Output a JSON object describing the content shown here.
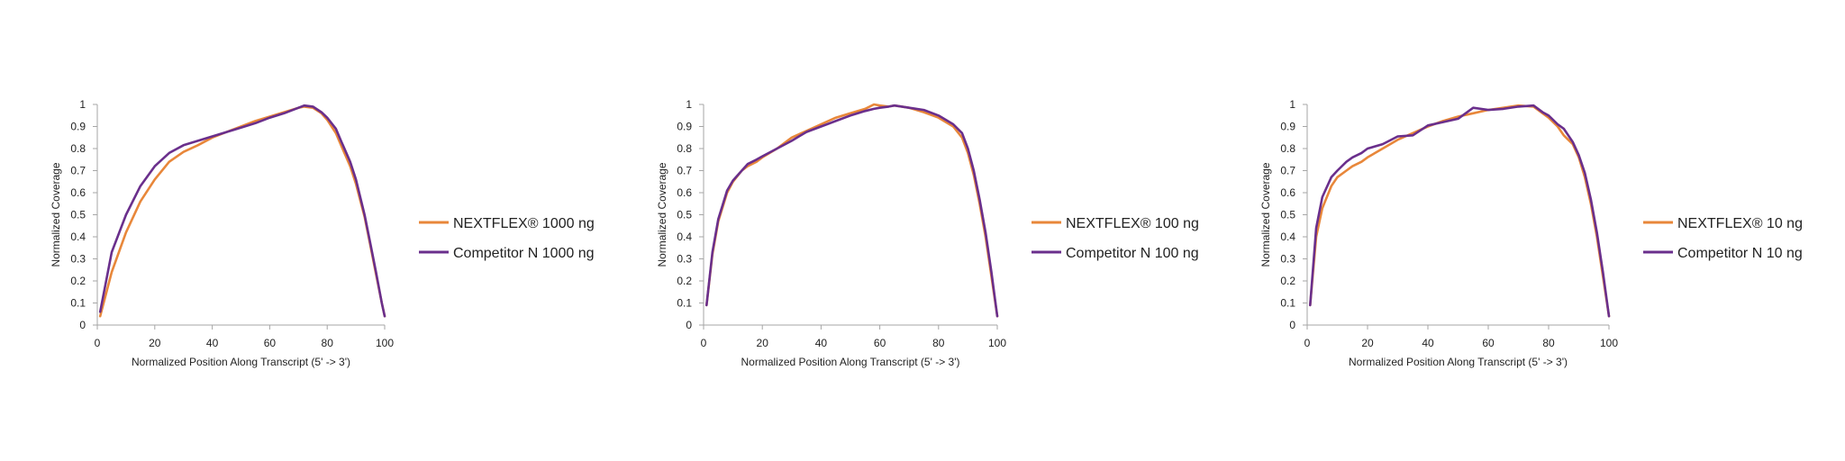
{
  "colors": {
    "nextflex": "#E8873A",
    "competitor": "#6A2F8C",
    "axis": "#A6A6A6",
    "text": "#222222"
  },
  "chart_data": [
    {
      "type": "line",
      "title": "",
      "xlabel": "Normalized Position Along Transcript (5' -> 3')",
      "ylabel": "Normalized Coverage",
      "xlim": [
        0,
        100
      ],
      "ylim": [
        0,
        1
      ],
      "xticks": [
        "0",
        "20",
        "40",
        "60",
        "80",
        "100"
      ],
      "yticks": [
        "0",
        "0.1",
        "0.2",
        "0.3",
        "0.4",
        "0.5",
        "0.6",
        "0.7",
        "0.8",
        "0.9",
        "1"
      ],
      "legend_position": "right",
      "series": [
        {
          "name": "NEXTFLEX® 1000 ng",
          "x": [
            1,
            5,
            10,
            15,
            20,
            25,
            30,
            35,
            40,
            45,
            50,
            55,
            60,
            65,
            70,
            72,
            75,
            78,
            80,
            83,
            85,
            88,
            90,
            93,
            95,
            97,
            99,
            100
          ],
          "y": [
            0.04,
            0.24,
            0.42,
            0.56,
            0.66,
            0.74,
            0.785,
            0.815,
            0.85,
            0.875,
            0.9,
            0.925,
            0.945,
            0.965,
            0.985,
            0.99,
            0.985,
            0.96,
            0.93,
            0.87,
            0.81,
            0.72,
            0.64,
            0.49,
            0.36,
            0.23,
            0.1,
            0.04
          ]
        },
        {
          "name": "Competitor N 1000 ng",
          "x": [
            1,
            5,
            10,
            15,
            20,
            25,
            30,
            35,
            40,
            45,
            50,
            55,
            60,
            65,
            70,
            72,
            75,
            78,
            80,
            83,
            85,
            88,
            90,
            93,
            95,
            97,
            99,
            100
          ],
          "y": [
            0.06,
            0.33,
            0.5,
            0.63,
            0.72,
            0.78,
            0.815,
            0.835,
            0.855,
            0.875,
            0.895,
            0.915,
            0.94,
            0.96,
            0.985,
            0.995,
            0.99,
            0.965,
            0.94,
            0.89,
            0.83,
            0.74,
            0.66,
            0.5,
            0.37,
            0.24,
            0.1,
            0.04
          ]
        }
      ]
    },
    {
      "type": "line",
      "title": "",
      "xlabel": "Normalized Position Along Transcript (5' -> 3')",
      "ylabel": "Normalized Coverage",
      "xlim": [
        0,
        100
      ],
      "ylim": [
        0,
        1
      ],
      "xticks": [
        "0",
        "20",
        "40",
        "60",
        "80",
        "100"
      ],
      "yticks": [
        "0",
        "0.1",
        "0.2",
        "0.3",
        "0.4",
        "0.5",
        "0.6",
        "0.7",
        "0.8",
        "0.9",
        "1"
      ],
      "legend_position": "right",
      "series": [
        {
          "name": "NEXTFLEX® 100 ng",
          "x": [
            1,
            3,
            5,
            8,
            10,
            13,
            15,
            18,
            20,
            25,
            30,
            35,
            40,
            45,
            50,
            55,
            58,
            60,
            63,
            65,
            70,
            75,
            80,
            85,
            88,
            90,
            92,
            94,
            96,
            98,
            100
          ],
          "y": [
            0.09,
            0.32,
            0.47,
            0.6,
            0.65,
            0.7,
            0.72,
            0.74,
            0.76,
            0.8,
            0.85,
            0.88,
            0.91,
            0.94,
            0.96,
            0.98,
            1.0,
            0.995,
            0.99,
            0.995,
            0.985,
            0.965,
            0.94,
            0.9,
            0.85,
            0.78,
            0.68,
            0.55,
            0.4,
            0.22,
            0.04
          ]
        },
        {
          "name": "Competitor N 100 ng",
          "x": [
            1,
            3,
            5,
            8,
            10,
            13,
            15,
            18,
            20,
            25,
            30,
            35,
            40,
            45,
            50,
            55,
            58,
            60,
            63,
            65,
            70,
            75,
            80,
            85,
            88,
            90,
            92,
            94,
            96,
            98,
            100
          ],
          "y": [
            0.09,
            0.33,
            0.48,
            0.61,
            0.655,
            0.7,
            0.73,
            0.75,
            0.765,
            0.8,
            0.835,
            0.875,
            0.9,
            0.925,
            0.95,
            0.97,
            0.98,
            0.985,
            0.99,
            0.995,
            0.985,
            0.975,
            0.95,
            0.91,
            0.87,
            0.8,
            0.7,
            0.57,
            0.42,
            0.24,
            0.04
          ]
        }
      ]
    },
    {
      "type": "line",
      "title": "",
      "xlabel": "Normalized Position Along Transcript (5' -> 3')",
      "ylabel": "Normalized Coverage",
      "xlim": [
        0,
        100
      ],
      "ylim": [
        0,
        1
      ],
      "xticks": [
        "0",
        "20",
        "40",
        "60",
        "80",
        "100"
      ],
      "yticks": [
        "0",
        "0.1",
        "0.2",
        "0.3",
        "0.4",
        "0.5",
        "0.6",
        "0.7",
        "0.8",
        "0.9",
        "1"
      ],
      "legend_position": "right",
      "series": [
        {
          "name": "NEXTFLEX® 10 ng",
          "x": [
            1,
            3,
            5,
            8,
            10,
            13,
            15,
            18,
            20,
            25,
            30,
            35,
            40,
            45,
            50,
            55,
            60,
            65,
            70,
            75,
            78,
            80,
            83,
            85,
            88,
            90,
            92,
            94,
            96,
            98,
            100
          ],
          "y": [
            0.09,
            0.4,
            0.53,
            0.63,
            0.67,
            0.7,
            0.72,
            0.74,
            0.76,
            0.8,
            0.84,
            0.87,
            0.9,
            0.925,
            0.945,
            0.96,
            0.975,
            0.985,
            0.995,
            0.99,
            0.96,
            0.94,
            0.9,
            0.86,
            0.82,
            0.76,
            0.67,
            0.55,
            0.4,
            0.22,
            0.04
          ]
        },
        {
          "name": "Competitor N 10 ng",
          "x": [
            1,
            3,
            5,
            8,
            10,
            13,
            15,
            18,
            20,
            25,
            30,
            35,
            40,
            45,
            50,
            55,
            60,
            65,
            70,
            75,
            78,
            80,
            83,
            85,
            88,
            90,
            92,
            94,
            96,
            98,
            100
          ],
          "y": [
            0.09,
            0.44,
            0.58,
            0.67,
            0.7,
            0.74,
            0.76,
            0.78,
            0.8,
            0.82,
            0.855,
            0.86,
            0.905,
            0.92,
            0.935,
            0.985,
            0.975,
            0.98,
            0.99,
            0.995,
            0.965,
            0.95,
            0.91,
            0.89,
            0.83,
            0.77,
            0.69,
            0.57,
            0.42,
            0.24,
            0.04
          ]
        }
      ]
    }
  ]
}
